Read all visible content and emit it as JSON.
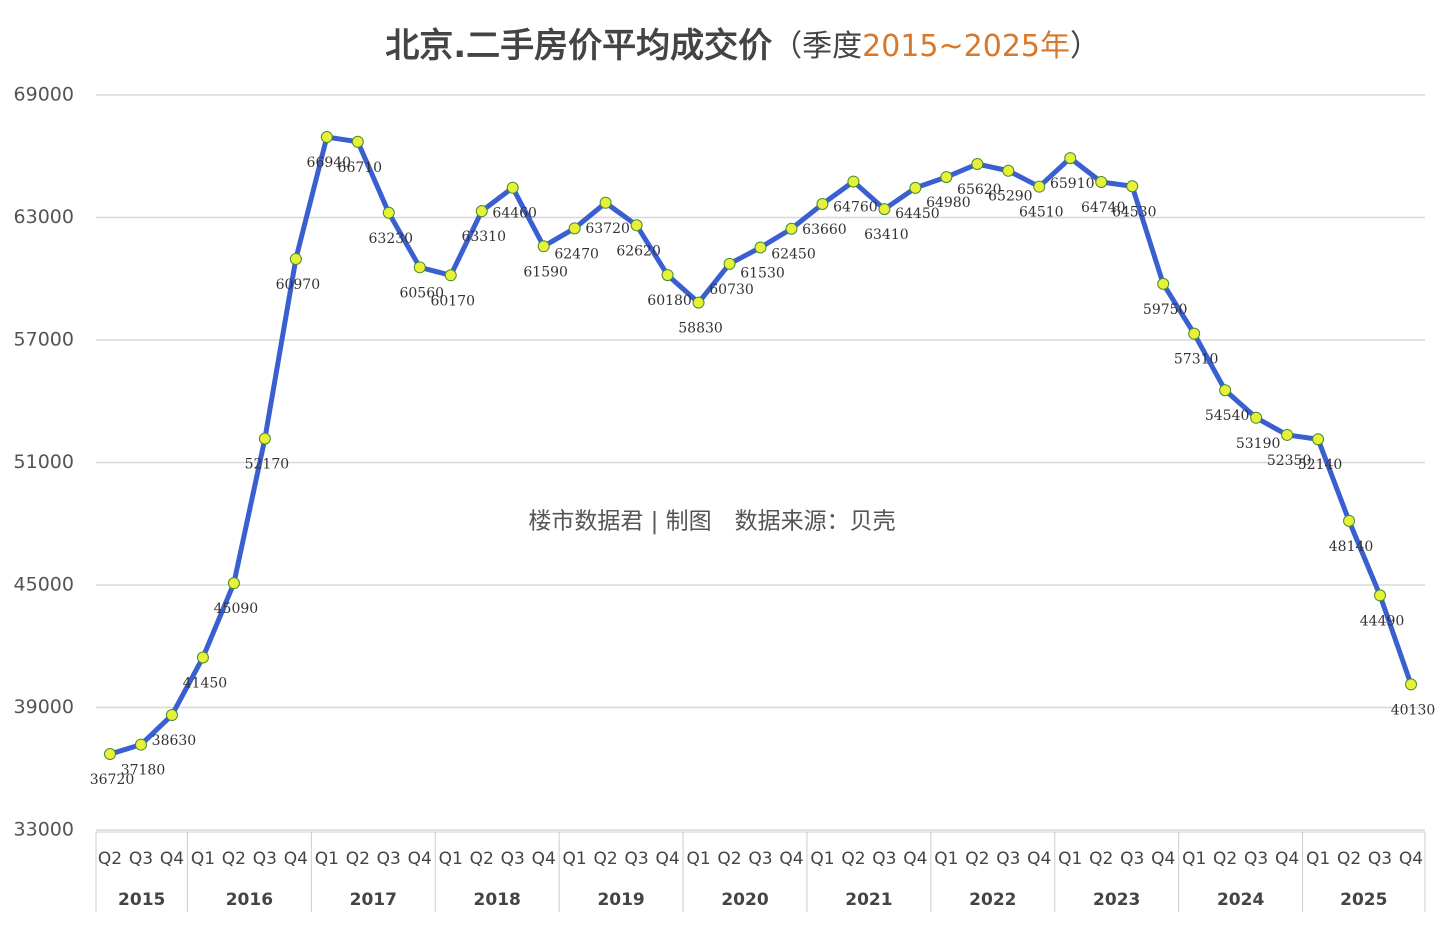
{
  "chart_data": {
    "type": "line",
    "title": "北京.二手房价平均成交价",
    "subtitle_open": "（季度",
    "subtitle_years": "2015~2025年",
    "subtitle_close": "）",
    "annotation": "楼市数据君 | 制图　数据来源：贝壳",
    "categories": [
      "Q2",
      "Q3",
      "Q4",
      "Q1",
      "Q2",
      "Q3",
      "Q4",
      "Q1",
      "Q2",
      "Q3",
      "Q4",
      "Q1",
      "Q2",
      "Q3",
      "Q4",
      "Q1",
      "Q2",
      "Q3",
      "Q4",
      "Q1",
      "Q2",
      "Q3",
      "Q4",
      "Q1",
      "Q2",
      "Q3",
      "Q4",
      "Q1",
      "Q2",
      "Q3",
      "Q4",
      "Q1",
      "Q2",
      "Q3",
      "Q4",
      "Q1",
      "Q2",
      "Q3",
      "Q4",
      "Q1",
      "Q2",
      "Q3",
      "Q4"
    ],
    "years": [
      "2015",
      "2016",
      "2017",
      "2018",
      "2019",
      "2020",
      "2021",
      "2022",
      "2023",
      "2024",
      "2025"
    ],
    "series": [
      {
        "name": "平均成交价",
        "color": "#3a5fd0",
        "marker_color": "#e6f23a",
        "values": [
          36720,
          37180,
          38630,
          41450,
          45090,
          52170,
          60970,
          66940,
          66710,
          63230,
          60560,
          60170,
          63310,
          64460,
          61590,
          62470,
          63720,
          62620,
          60180,
          58830,
          60730,
          61530,
          62450,
          63660,
          64760,
          63410,
          64450,
          64980,
          65620,
          65290,
          64510,
          65910,
          64740,
          64530,
          59750,
          57310,
          54540,
          53190,
          52350,
          52140,
          48140,
          44490,
          40130
        ]
      }
    ],
    "ylim": [
      33000,
      69000
    ],
    "yticks": [
      33000,
      39000,
      45000,
      51000,
      57000,
      63000,
      69000
    ],
    "grid": true
  }
}
